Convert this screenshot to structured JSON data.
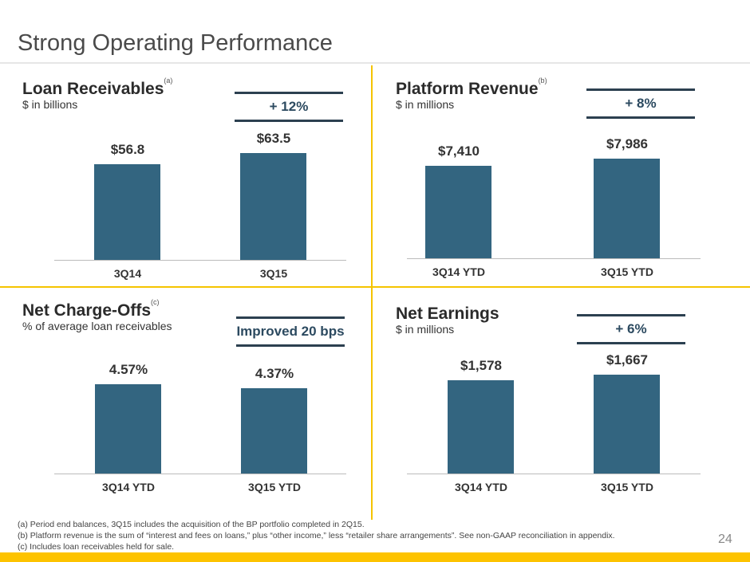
{
  "title": "Strong Operating Performance",
  "page_number": "24",
  "footnotes": [
    "(a)  Period end balances, 3Q15 includes the acquisition of the BP portfolio completed in 2Q15.",
    "(b)  Platform revenue is the sum of “interest and fees on loans,” plus “other income,” less “retailer share arrangements”.  See non-GAAP reconciliation in appendix.",
    "(c)  Includes loan receivables held for sale."
  ],
  "colors": {
    "bar": "#336580",
    "accent": "#fdc300"
  },
  "chart_data": [
    {
      "type": "bar",
      "title": "Loan Receivables",
      "note": "(a)",
      "subtitle": "$ in billions",
      "change": "+ 12%",
      "categories": [
        "3Q14",
        "3Q15"
      ],
      "values": [
        56.8,
        63.5
      ],
      "labels": [
        "$56.8",
        "$63.5"
      ],
      "ylim": [
        0,
        76
      ]
    },
    {
      "type": "bar",
      "title": "Platform Revenue",
      "note": "(b)",
      "subtitle": "$ in millions",
      "change": "+ 8%",
      "categories": [
        "3Q14 YTD",
        "3Q15 YTD"
      ],
      "values": [
        7410,
        7986
      ],
      "labels": [
        "$7,410",
        "$7,986"
      ],
      "ylim": [
        0,
        10200
      ]
    },
    {
      "type": "bar",
      "title": "Net Charge-Offs",
      "note": "(c)",
      "subtitle": "% of average loan receivables",
      "change": "Improved 20 bps",
      "categories": [
        "3Q14 YTD",
        "3Q15 YTD"
      ],
      "values": [
        4.57,
        4.37
      ],
      "labels": [
        "4.57%",
        "4.37%"
      ],
      "ylim": [
        0,
        6.53
      ]
    },
    {
      "type": "bar",
      "title": "Net Earnings",
      "note": "",
      "subtitle": "$ in millions",
      "change": "+ 6%",
      "categories": [
        "3Q14 YTD",
        "3Q15 YTD"
      ],
      "values": [
        1578,
        1667
      ],
      "labels": [
        "$1,578",
        "$1,667"
      ],
      "ylim": [
        0,
        2150
      ]
    }
  ]
}
